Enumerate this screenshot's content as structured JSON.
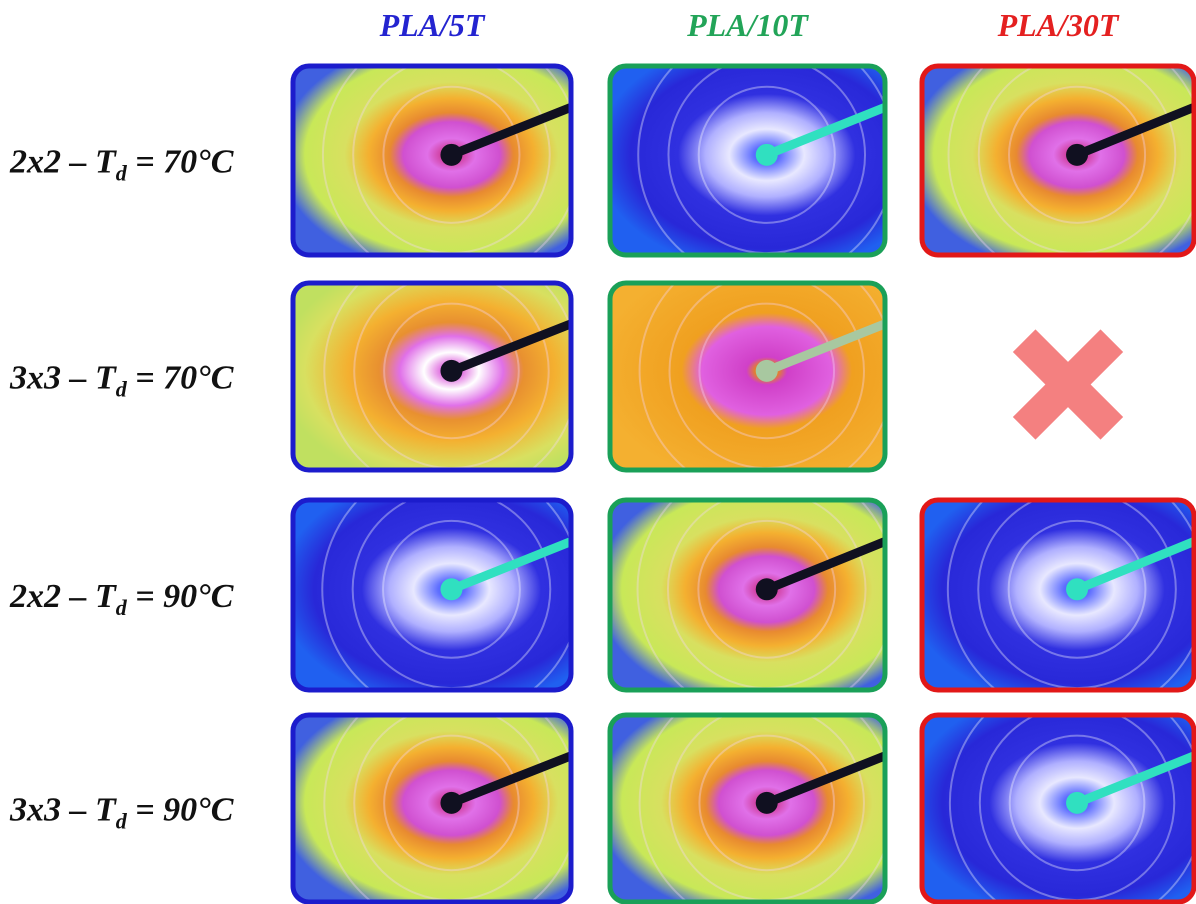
{
  "columns": [
    "PLA/5T",
    "PLA/10T",
    "PLA/30T"
  ],
  "rows": [
    {
      "label": {
        "main": "2x2 – T",
        "sub": "d",
        "tail": " = 70°C"
      }
    },
    {
      "label": {
        "main": "3x3 – T",
        "sub": "d",
        "tail": " = 70°C"
      }
    },
    {
      "label": {
        "main": "2x2 – T",
        "sub": "d",
        "tail": " = 90°C"
      }
    },
    {
      "label": {
        "main": "3x3 – T",
        "sub": "d",
        "tail": " = 90°C"
      }
    }
  ]
}
